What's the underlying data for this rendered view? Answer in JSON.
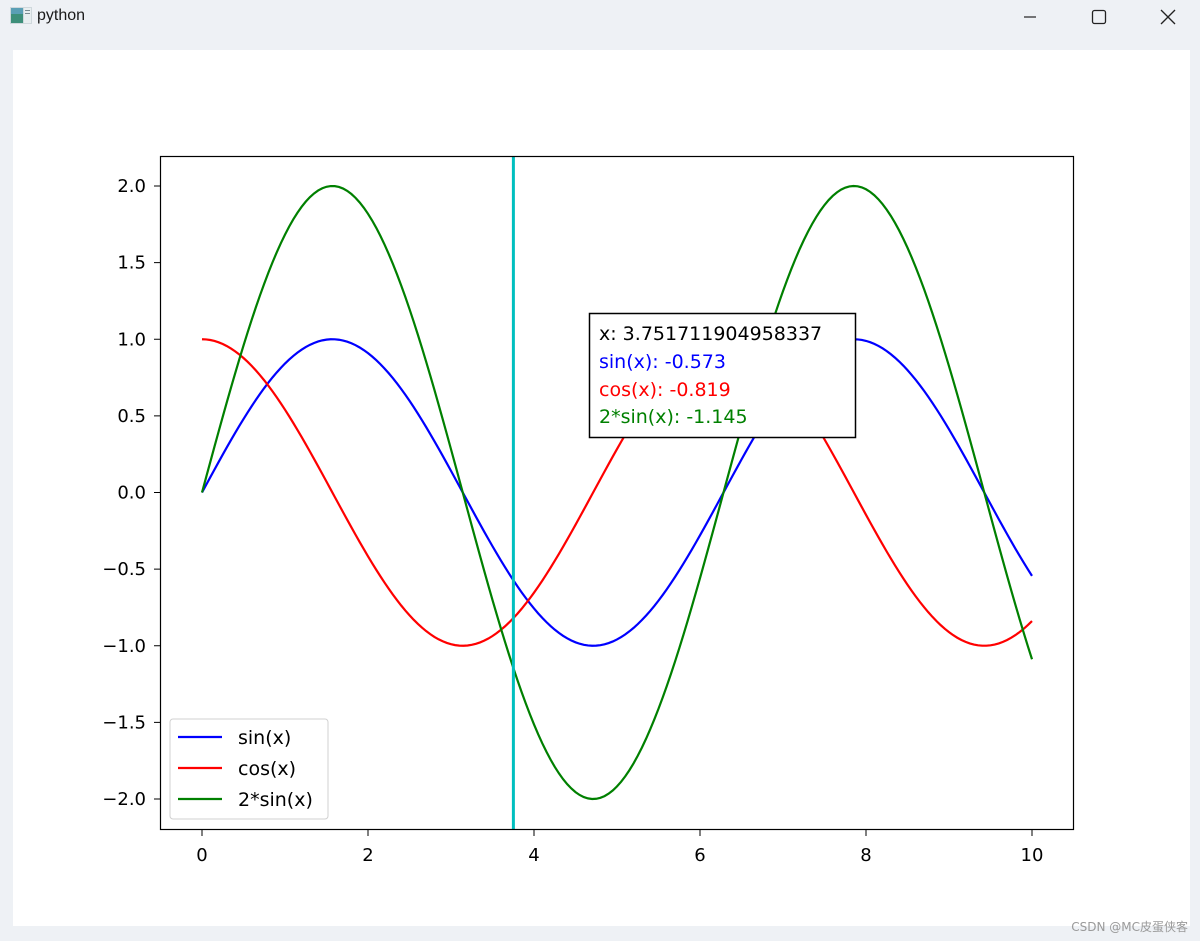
{
  "window": {
    "title": "python",
    "controls": {
      "minimize": "minimize",
      "maximize": "maximize",
      "close": "close"
    }
  },
  "tooltip": {
    "x_line": "x: 3.751711904958337",
    "sin_line": "sin(x): -0.573",
    "cos_line": "cos(x): -0.819",
    "twosin_line": "2*sin(x): -1.145"
  },
  "legend": {
    "items": [
      {
        "label": "sin(x)",
        "color": "#0000ff"
      },
      {
        "label": "cos(x)",
        "color": "#ff0000"
      },
      {
        "label": "2*sin(x)",
        "color": "#008000"
      }
    ]
  },
  "cursor": {
    "x": 3.751711904958337,
    "color": "#00bfbf"
  },
  "watermark": "CSDN @MC皮蛋侠客",
  "chart_data": {
    "type": "line",
    "title": "",
    "xlabel": "",
    "ylabel": "",
    "xlim": [
      -0.5,
      10.5
    ],
    "ylim": [
      -2.2,
      2.2
    ],
    "grid": false,
    "legend_position": "lower left",
    "x_ticks": [
      "0",
      "2",
      "4",
      "6",
      "8",
      "10"
    ],
    "y_ticks": [
      "2.0",
      "1.5",
      "1.0",
      "0.5",
      "0.0",
      "−0.5",
      "−1.0",
      "−1.5",
      "−2.0"
    ],
    "x": [
      0,
      0.5,
      1,
      1.5,
      2,
      2.5,
      3,
      3.5,
      4,
      4.5,
      5,
      5.5,
      6,
      6.5,
      7,
      7.5,
      8,
      8.5,
      9,
      9.5,
      10
    ],
    "series": [
      {
        "name": "sin(x)",
        "color": "#0000ff",
        "function": "sin(x)",
        "values": [
          0,
          0.479,
          0.841,
          0.997,
          0.909,
          0.598,
          0.141,
          -0.351,
          -0.757,
          -0.978,
          -0.959,
          -0.706,
          -0.279,
          0.215,
          0.657,
          0.938,
          0.989,
          0.798,
          0.412,
          -0.075,
          -0.544
        ]
      },
      {
        "name": "cos(x)",
        "color": "#ff0000",
        "function": "cos(x)",
        "values": [
          1,
          0.878,
          0.54,
          0.071,
          -0.416,
          -0.801,
          -0.99,
          -0.936,
          -0.654,
          -0.211,
          0.284,
          0.709,
          0.96,
          0.977,
          0.754,
          0.347,
          -0.146,
          -0.602,
          -0.911,
          -0.997,
          -0.839
        ]
      },
      {
        "name": "2*sin(x)",
        "color": "#008000",
        "function": "2*sin(x)",
        "values": [
          0,
          0.959,
          1.683,
          1.995,
          1.819,
          1.197,
          0.282,
          -0.702,
          -1.514,
          -1.955,
          -1.918,
          -1.411,
          -0.559,
          0.43,
          1.314,
          1.876,
          1.979,
          1.596,
          0.824,
          -0.15,
          -1.088
        ]
      }
    ],
    "annotations": [
      {
        "type": "vline",
        "x": 3.751711904958337,
        "color": "#00bfbf"
      },
      {
        "type": "textbox",
        "lines": [
          "x: 3.751711904958337",
          "sin(x): -0.573",
          "cos(x): -0.819",
          "2*sin(x): -1.145"
        ]
      }
    ]
  }
}
